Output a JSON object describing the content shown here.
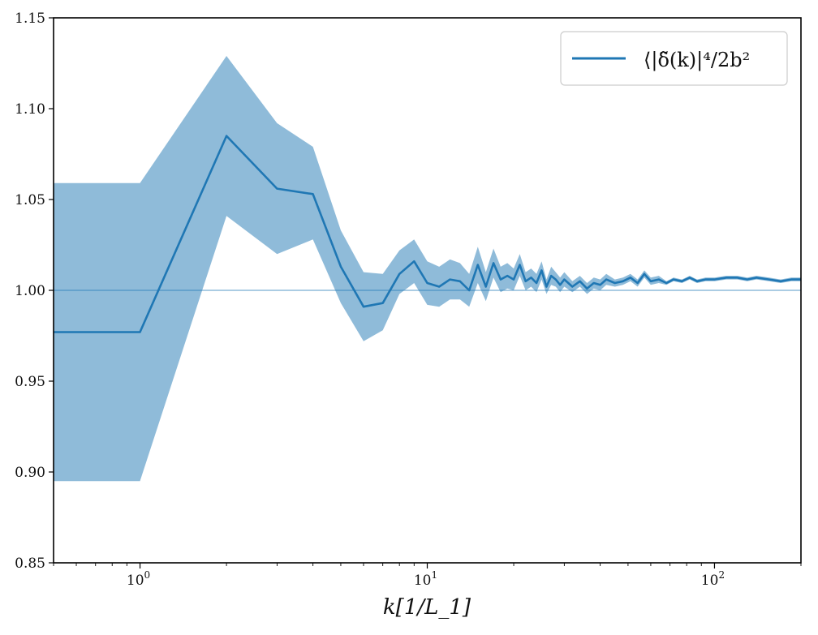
{
  "chart_data": {
    "type": "line",
    "title": "",
    "xlabel": "k[1/L_1]",
    "ylabel": "",
    "xscale": "log",
    "xlim": [
      0.5,
      200
    ],
    "ylim": [
      0.85,
      1.15
    ],
    "grid": false,
    "legend_position": "top-right",
    "reference_line": {
      "y": 1.0,
      "color": "#1f77b4"
    },
    "x_tick_labels": [
      {
        "value": 1,
        "base": "10",
        "exponent": "0"
      },
      {
        "value": 10,
        "base": "10",
        "exponent": "1"
      },
      {
        "value": 100,
        "base": "10",
        "exponent": "2"
      }
    ],
    "y_tick_labels": [
      "0.85",
      "0.90",
      "0.95",
      "1.00",
      "1.05",
      "1.10",
      "1.15"
    ],
    "y_tick_values": [
      0.85,
      0.9,
      0.95,
      1.0,
      1.05,
      1.1,
      1.15
    ],
    "colors": {
      "line": "#1f77b4",
      "band": "#1f77b4",
      "band_opacity": 0.5
    },
    "series": [
      {
        "name": "⟨|δ̃(k)|⁴/2b²",
        "x": [
          0.5,
          1.0,
          2.0,
          3.0,
          4.0,
          5.0,
          6.0,
          7.0,
          8.0,
          9.0,
          10.0,
          11.0,
          12.0,
          13.0,
          14.0,
          15.0,
          16.0,
          17.0,
          18.0,
          19.0,
          20.0,
          21.0,
          22.0,
          23.0,
          24.0,
          25.0,
          26.0,
          27.0,
          28.0,
          29.0,
          30.0,
          32.0,
          34.0,
          36.0,
          38.0,
          40.0,
          42.0,
          45.0,
          48.0,
          51.0,
          54.0,
          57.0,
          60.0,
          64.0,
          68.0,
          72.0,
          77.0,
          82.0,
          87.0,
          93.0,
          100.0,
          110.0,
          120.0,
          130.0,
          140.0,
          155.0,
          170.0,
          185.0,
          200.0
        ],
        "y": [
          0.977,
          0.977,
          1.085,
          1.056,
          1.053,
          1.013,
          0.991,
          0.993,
          1.009,
          1.016,
          1.004,
          1.002,
          1.006,
          1.005,
          1.0,
          1.014,
          1.002,
          1.015,
          1.006,
          1.008,
          1.006,
          1.014,
          1.005,
          1.007,
          1.004,
          1.011,
          1.002,
          1.008,
          1.006,
          1.003,
          1.006,
          1.002,
          1.005,
          1.001,
          1.004,
          1.003,
          1.006,
          1.004,
          1.005,
          1.007,
          1.004,
          1.009,
          1.005,
          1.006,
          1.004,
          1.006,
          1.005,
          1.007,
          1.005,
          1.006,
          1.006,
          1.007,
          1.007,
          1.006,
          1.007,
          1.006,
          1.005,
          1.006,
          1.006
        ],
        "lower": [
          0.895,
          0.895,
          1.041,
          1.02,
          1.028,
          0.993,
          0.972,
          0.978,
          0.998,
          1.004,
          0.992,
          0.991,
          0.995,
          0.995,
          0.991,
          1.004,
          0.994,
          1.007,
          0.999,
          1.001,
          1.0,
          1.008,
          1.0,
          1.002,
          0.999,
          1.006,
          0.998,
          1.003,
          1.002,
          0.999,
          1.002,
          0.999,
          1.002,
          0.998,
          1.001,
          1.0,
          1.003,
          1.002,
          1.003,
          1.005,
          1.002,
          1.007,
          1.003,
          1.004,
          1.003,
          1.005,
          1.004,
          1.006,
          1.004,
          1.005,
          1.005,
          1.006,
          1.006,
          1.005,
          1.006,
          1.005,
          1.004,
          1.005,
          1.005
        ],
        "upper": [
          1.059,
          1.059,
          1.129,
          1.092,
          1.079,
          1.033,
          1.01,
          1.009,
          1.022,
          1.028,
          1.016,
          1.013,
          1.017,
          1.015,
          1.009,
          1.024,
          1.01,
          1.023,
          1.013,
          1.015,
          1.012,
          1.02,
          1.01,
          1.012,
          1.009,
          1.016,
          1.006,
          1.013,
          1.01,
          1.007,
          1.01,
          1.005,
          1.008,
          1.004,
          1.007,
          1.006,
          1.009,
          1.006,
          1.007,
          1.009,
          1.006,
          1.011,
          1.007,
          1.008,
          1.005,
          1.007,
          1.006,
          1.008,
          1.006,
          1.007,
          1.007,
          1.008,
          1.008,
          1.007,
          1.008,
          1.007,
          1.006,
          1.007,
          1.007
        ]
      }
    ]
  }
}
